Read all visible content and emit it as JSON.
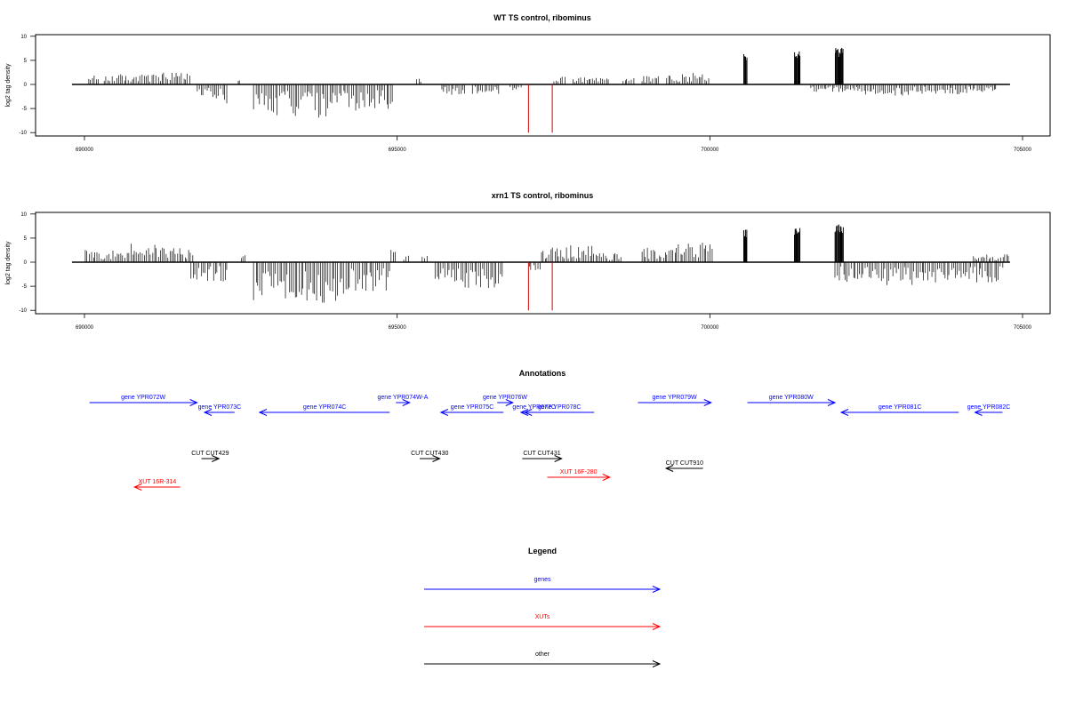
{
  "colors": {
    "gene": "#0000ff",
    "xut": "#ff0000",
    "other": "#000000",
    "signal": "#000000",
    "marker": "#cc0000"
  },
  "chart_data": [
    {
      "type": "bar",
      "title": "WT TS control, ribominus",
      "ylabel": "log2 tag density",
      "xlim": [
        689800,
        704800
      ],
      "ylim": [
        -10,
        10
      ],
      "xticks": [
        690000,
        695000,
        700000,
        705000
      ],
      "yticks": [
        -10,
        -5,
        0,
        5,
        10
      ],
      "markers_x": [
        697100,
        697480
      ],
      "series": [
        {
          "strand": "plus",
          "regions": [
            [
              690050,
              690250,
              1.3
            ],
            [
              690300,
              690500,
              1.6
            ],
            [
              690500,
              691200,
              1.5
            ],
            [
              691200,
              691700,
              1.7
            ],
            [
              692450,
              692500,
              1.2
            ],
            [
              695300,
              695400,
              1.0
            ],
            [
              697500,
              697700,
              1.2
            ],
            [
              697800,
              698400,
              1.0
            ],
            [
              698600,
              698800,
              1.0
            ],
            [
              698900,
              699200,
              1.3
            ],
            [
              699300,
              699700,
              1.5
            ],
            [
              699700,
              700000,
              2.0
            ],
            [
              700540,
              700600,
              6.5
            ],
            [
              701350,
              701450,
              7.0
            ],
            [
              702000,
              702140,
              7.6
            ]
          ]
        },
        {
          "strand": "minus",
          "regions": [
            [
              691800,
              692100,
              -1.8
            ],
            [
              692100,
              692300,
              -2.8
            ],
            [
              692700,
              693300,
              -4.5
            ],
            [
              693300,
              694100,
              -4.8
            ],
            [
              694100,
              694950,
              -4.0
            ],
            [
              695700,
              696100,
              -1.6
            ],
            [
              696200,
              696650,
              -1.4
            ],
            [
              696800,
              697000,
              -1.0
            ],
            [
              701600,
              702300,
              -1.1
            ],
            [
              702300,
              703200,
              -1.6
            ],
            [
              703200,
              704600,
              -1.4
            ]
          ]
        }
      ]
    },
    {
      "type": "bar",
      "title": "xrn1 TS control, ribominus",
      "ylabel": "log2 tag density",
      "xlim": [
        689800,
        704800
      ],
      "ylim": [
        -10,
        10
      ],
      "xticks": [
        690000,
        695000,
        700000,
        705000
      ],
      "yticks": [
        -10,
        -5,
        0,
        5,
        10
      ],
      "markers_x": [
        697100,
        697480
      ],
      "series": [
        {
          "strand": "plus",
          "regions": [
            [
              690000,
              690700,
              1.8
            ],
            [
              690700,
              691200,
              2.8
            ],
            [
              691200,
              691750,
              2.3
            ],
            [
              692500,
              692600,
              1.0
            ],
            [
              694900,
              695000,
              2.0
            ],
            [
              695100,
              695200,
              1.0
            ],
            [
              695400,
              695500,
              1.0
            ],
            [
              697300,
              697600,
              2.2
            ],
            [
              697600,
              698200,
              2.4
            ],
            [
              698200,
              698600,
              1.3
            ],
            [
              698900,
              699400,
              2.2
            ],
            [
              699400,
              700050,
              2.8
            ],
            [
              700540,
              700600,
              6.8
            ],
            [
              701350,
              701450,
              7.2
            ],
            [
              702000,
              702140,
              8.0
            ],
            [
              704200,
              704800,
              1.2
            ]
          ]
        },
        {
          "strand": "minus",
          "regions": [
            [
              691700,
              692300,
              -2.8
            ],
            [
              692700,
              693300,
              -5.5
            ],
            [
              693300,
              694200,
              -5.8
            ],
            [
              694200,
              694900,
              -4.2
            ],
            [
              695600,
              696700,
              -3.8
            ],
            [
              697100,
              697300,
              -1.2
            ],
            [
              702000,
              702600,
              -2.8
            ],
            [
              702600,
              703600,
              -3.4
            ],
            [
              703600,
              704700,
              -2.9
            ]
          ]
        }
      ]
    }
  ],
  "annotations": {
    "title": "Annotations",
    "features": [
      {
        "label": "gene YPR072W",
        "kind": "gene",
        "start": 690080,
        "end": 691800,
        "row": 0,
        "dir": "right"
      },
      {
        "label": "gene YPR073C",
        "kind": "gene",
        "start": 691920,
        "end": 692400,
        "row": 1,
        "dir": "left"
      },
      {
        "label": "gene YPR074C",
        "kind": "gene",
        "start": 692800,
        "end": 694880,
        "row": 1,
        "dir": "left"
      },
      {
        "label": "gene YPR074W-A",
        "kind": "gene",
        "start": 694980,
        "end": 695200,
        "row": 0,
        "dir": "right"
      },
      {
        "label": "gene YPR075C",
        "kind": "gene",
        "start": 695700,
        "end": 696700,
        "row": 1,
        "dir": "left"
      },
      {
        "label": "gene YPR076W",
        "kind": "gene",
        "start": 696600,
        "end": 696850,
        "row": 0,
        "dir": "right"
      },
      {
        "label": "gene YPR077C",
        "kind": "gene",
        "start": 696980,
        "end": 697400,
        "row": 1,
        "dir": "left"
      },
      {
        "label": "gene YPR078C",
        "kind": "gene",
        "start": 697040,
        "end": 698150,
        "row": 1,
        "dir": "left"
      },
      {
        "label": "gene YPR079W",
        "kind": "gene",
        "start": 698850,
        "end": 700020,
        "row": 0,
        "dir": "right"
      },
      {
        "label": "gene YPR080W",
        "kind": "gene",
        "start": 700600,
        "end": 702000,
        "row": 0,
        "dir": "right"
      },
      {
        "label": "gene YPR081C",
        "kind": "gene",
        "start": 702100,
        "end": 703980,
        "row": 1,
        "dir": "left"
      },
      {
        "label": "gene YPR082C",
        "kind": "gene",
        "start": 704240,
        "end": 704680,
        "row": 1,
        "dir": "left"
      },
      {
        "label": "CUT CUT429",
        "kind": "other",
        "start": 691870,
        "end": 692150,
        "row": 2,
        "dir": "right"
      },
      {
        "label": "CUT CUT430",
        "kind": "other",
        "start": 695360,
        "end": 695680,
        "row": 2,
        "dir": "right"
      },
      {
        "label": "CUT CUT431",
        "kind": "other",
        "start": 697000,
        "end": 697630,
        "row": 2,
        "dir": "right"
      },
      {
        "label": "CUT CUT910",
        "kind": "other",
        "start": 699300,
        "end": 699890,
        "row": 3,
        "dir": "left"
      },
      {
        "label": "XUT 16F-280",
        "kind": "xut",
        "start": 697400,
        "end": 698400,
        "row": 4,
        "dir": "right"
      },
      {
        "label": "XUT 16R-314",
        "kind": "xut",
        "start": 690800,
        "end": 691530,
        "row": 5,
        "dir": "left"
      }
    ]
  },
  "legend": {
    "title": "Legend",
    "items": [
      {
        "label": "genes",
        "kind": "gene"
      },
      {
        "label": "XUTs",
        "kind": "xut"
      },
      {
        "label": "other",
        "kind": "other"
      }
    ]
  }
}
